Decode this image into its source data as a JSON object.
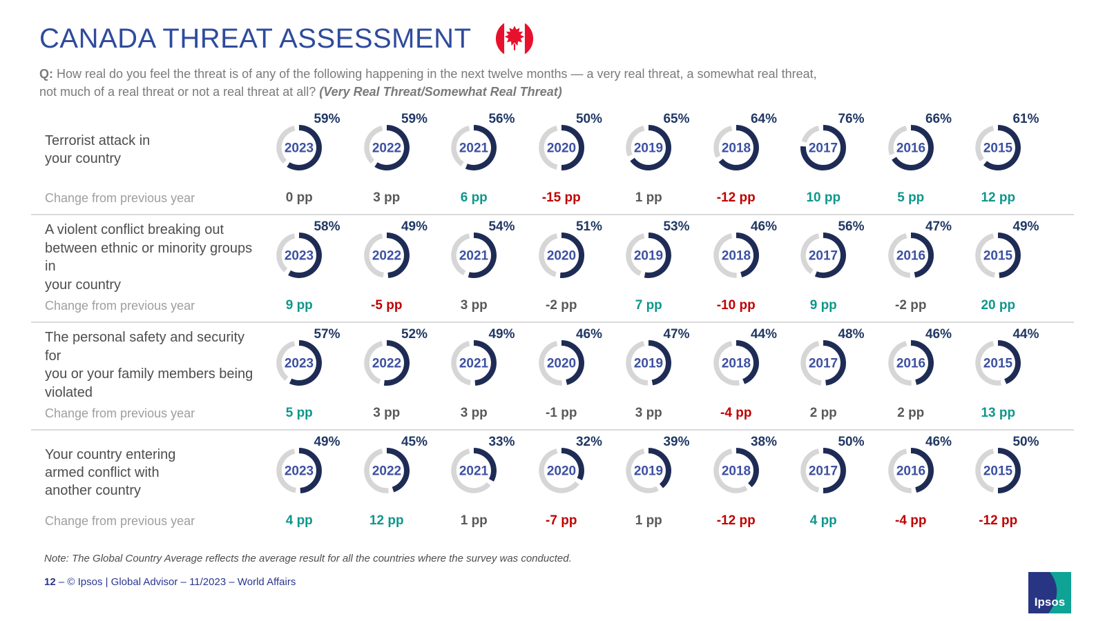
{
  "header": {
    "title": "CANADA THREAT ASSESSMENT",
    "flag_icon": "canada-flag"
  },
  "question": {
    "label": "Q:",
    "line1": "How real do you feel the threat is of any of the following happening in the next twelve months — a very real threat, a somewhat real threat,",
    "line2": "not much of a real threat or not a real threat at all?",
    "emphasis": "(Very Real Threat/Somewhat Real Threat)"
  },
  "change_label": "Change from previous year",
  "rows": [
    {
      "label": "Terrorist attack in\nyour country",
      "changes": [
        {
          "text": "0 pp",
          "tone": "neutral"
        },
        {
          "text": "3 pp",
          "tone": "neutral"
        },
        {
          "text": "6 pp",
          "tone": "pos"
        },
        {
          "text": "-15 pp",
          "tone": "neg"
        },
        {
          "text": "1 pp",
          "tone": "neutral"
        },
        {
          "text": "-12 pp",
          "tone": "neg"
        },
        {
          "text": "10 pp",
          "tone": "pos"
        },
        {
          "text": "5 pp",
          "tone": "pos"
        },
        {
          "text": "12 pp",
          "tone": "pos"
        }
      ]
    },
    {
      "label": "A violent conflict breaking out\nbetween ethnic or minority groups in\nyour country",
      "changes": [
        {
          "text": "9 pp",
          "tone": "pos"
        },
        {
          "text": "-5 pp",
          "tone": "neg"
        },
        {
          "text": "3 pp",
          "tone": "neutral"
        },
        {
          "text": "-2 pp",
          "tone": "neutral"
        },
        {
          "text": "7 pp",
          "tone": "pos"
        },
        {
          "text": "-10 pp",
          "tone": "neg"
        },
        {
          "text": "9 pp",
          "tone": "pos"
        },
        {
          "text": "-2 pp",
          "tone": "neutral"
        },
        {
          "text": "20 pp",
          "tone": "pos"
        }
      ]
    },
    {
      "label": "The personal safety and security for\nyou or your family members being\nviolated",
      "changes": [
        {
          "text": "5 pp",
          "tone": "pos"
        },
        {
          "text": "3 pp",
          "tone": "neutral"
        },
        {
          "text": "3 pp",
          "tone": "neutral"
        },
        {
          "text": "-1 pp",
          "tone": "neutral"
        },
        {
          "text": "3 pp",
          "tone": "neutral"
        },
        {
          "text": "-4 pp",
          "tone": "neg"
        },
        {
          "text": "2 pp",
          "tone": "neutral"
        },
        {
          "text": "2 pp",
          "tone": "neutral"
        },
        {
          "text": "13 pp",
          "tone": "pos"
        }
      ]
    },
    {
      "label": "Your country entering\narmed conflict with\nanother country",
      "changes": [
        {
          "text": "4 pp",
          "tone": "pos"
        },
        {
          "text": "12 pp",
          "tone": "pos"
        },
        {
          "text": "1 pp",
          "tone": "neutral"
        },
        {
          "text": "-7 pp",
          "tone": "neg"
        },
        {
          "text": "1 pp",
          "tone": "neutral"
        },
        {
          "text": "-12 pp",
          "tone": "neg"
        },
        {
          "text": "4 pp",
          "tone": "pos"
        },
        {
          "text": "-4 pp",
          "tone": "neg"
        },
        {
          "text": "-12 pp",
          "tone": "neg"
        }
      ]
    }
  ],
  "chart_data": {
    "type": "pie",
    "subtype": "donut-grid",
    "title": "CANADA THREAT ASSESSMENT",
    "subtitle": "(Very Real Threat/Somewhat Real Threat)",
    "unit": "%",
    "categories": [
      "2023",
      "2022",
      "2021",
      "2020",
      "2019",
      "2018",
      "2017",
      "2016",
      "2015"
    ],
    "series": [
      {
        "name": "Terrorist attack in your country",
        "values": [
          59,
          59,
          56,
          50,
          65,
          64,
          76,
          66,
          61
        ],
        "changes_pp": [
          0,
          3,
          6,
          -15,
          1,
          -12,
          10,
          5,
          12
        ]
      },
      {
        "name": "A violent conflict breaking out between ethnic or minority groups in your country",
        "values": [
          58,
          49,
          54,
          51,
          53,
          46,
          56,
          47,
          49
        ],
        "changes_pp": [
          9,
          -5,
          3,
          -2,
          7,
          -10,
          9,
          -2,
          20
        ]
      },
      {
        "name": "The personal safety and security for you or your family members being violated",
        "values": [
          57,
          52,
          49,
          46,
          47,
          44,
          48,
          46,
          44
        ],
        "changes_pp": [
          5,
          3,
          3,
          -1,
          3,
          -4,
          2,
          2,
          13
        ]
      },
      {
        "name": "Your country entering armed conflict with another country",
        "values": [
          49,
          45,
          33,
          32,
          39,
          38,
          50,
          46,
          50
        ],
        "changes_pp": [
          4,
          12,
          1,
          -7,
          1,
          -12,
          4,
          -4,
          -12
        ]
      }
    ]
  },
  "note": {
    "text": "Note: The Global Country Average reflects the average result for all the countries where the survey was conducted."
  },
  "footer": {
    "page_number": "12",
    "sep": " –   ",
    "text": "© Ipsos | Global Advisor – 11/2023 – World Affairs"
  },
  "logo": {
    "text": "Ipsos"
  },
  "colors": {
    "title": "#2E4B9C",
    "arc": "#1E2C55",
    "track": "#D6D6D6",
    "year": "#3C50A2",
    "percent": "#203864",
    "positive": "#0E968B",
    "negative": "#C00000",
    "neutral": "#595959",
    "footer": "#28368F",
    "flag_red": "#E8112D",
    "logo_navy": "#283583",
    "logo_teal": "#0FA396"
  }
}
